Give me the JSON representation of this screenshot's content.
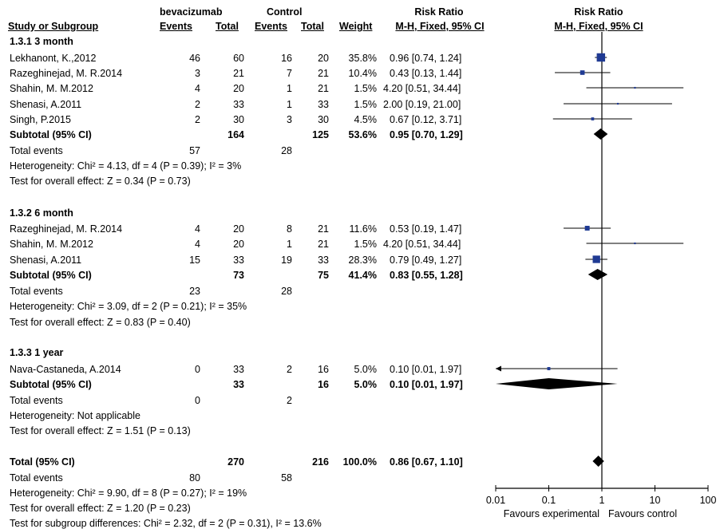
{
  "header": {
    "study_or_subgroup": "Study or Subgroup",
    "group1_name": "bevacizumab",
    "group2_name": "Control",
    "events": "Events",
    "total": "Total",
    "weight": "Weight",
    "rr_title": "Risk Ratio",
    "rr_method": "M-H, Fixed, 95% CI",
    "plot_title": "Risk Ratio",
    "plot_method": "M-H, Fixed, 95% CI"
  },
  "groups": [
    {
      "title": "1.3.1 3 month",
      "studies": [
        {
          "name": "Lekhanont, K.,2012",
          "e1": "46",
          "n1": "60",
          "e2": "16",
          "n2": "20",
          "weight": "35.8%",
          "ci": "0.96 [0.74, 1.24]"
        },
        {
          "name": "Razeghinejad, M. R.2014",
          "e1": "3",
          "n1": "21",
          "e2": "7",
          "n2": "21",
          "weight": "10.4%",
          "ci": "0.43 [0.13, 1.44]"
        },
        {
          "name": "Shahin, M. M.2012",
          "e1": "4",
          "n1": "20",
          "e2": "1",
          "n2": "21",
          "weight": "1.5%",
          "ci": "4.20 [0.51, 34.44]"
        },
        {
          "name": "Shenasi, A.2011",
          "e1": "2",
          "n1": "33",
          "e2": "1",
          "n2": "33",
          "weight": "1.5%",
          "ci": "2.00 [0.19, 21.00]"
        },
        {
          "name": "Singh, P.2015",
          "e1": "2",
          "n1": "30",
          "e2": "3",
          "n2": "30",
          "weight": "4.5%",
          "ci": "0.67 [0.12, 3.71]"
        }
      ],
      "subtotal": {
        "label": "Subtotal (95% CI)",
        "n1": "164",
        "n2": "125",
        "weight": "53.6%",
        "ci": "0.95 [0.70, 1.29]"
      },
      "total_events": {
        "label": "Total events",
        "e1": "57",
        "e2": "28"
      },
      "heterogeneity": "Heterogeneity: Chi² = 4.13, df = 4 (P = 0.39); I² = 3%",
      "overall": "Test for overall effect: Z = 0.34 (P = 0.73)"
    },
    {
      "title": "1.3.2 6 month",
      "studies": [
        {
          "name": "Razeghinejad, M. R.2014",
          "e1": "4",
          "n1": "20",
          "e2": "8",
          "n2": "21",
          "weight": "11.6%",
          "ci": "0.53 [0.19, 1.47]"
        },
        {
          "name": "Shahin, M. M.2012",
          "e1": "4",
          "n1": "20",
          "e2": "1",
          "n2": "21",
          "weight": "1.5%",
          "ci": "4.20 [0.51, 34.44]"
        },
        {
          "name": "Shenasi, A.2011",
          "e1": "15",
          "n1": "33",
          "e2": "19",
          "n2": "33",
          "weight": "28.3%",
          "ci": "0.79 [0.49, 1.27]"
        }
      ],
      "subtotal": {
        "label": "Subtotal (95% CI)",
        "n1": "73",
        "n2": "75",
        "weight": "41.4%",
        "ci": "0.83 [0.55, 1.28]"
      },
      "total_events": {
        "label": "Total events",
        "e1": "23",
        "e2": "28"
      },
      "heterogeneity": "Heterogeneity: Chi² = 3.09, df = 2 (P = 0.21); I² = 35%",
      "overall": "Test for overall effect: Z = 0.83 (P = 0.40)"
    },
    {
      "title": "1.3.3 1 year",
      "studies": [
        {
          "name": "Nava-Castaneda, A.2014",
          "e1": "0",
          "n1": "33",
          "e2": "2",
          "n2": "16",
          "weight": "5.0%",
          "ci": "0.10 [0.01, 1.97]"
        }
      ],
      "subtotal": {
        "label": "Subtotal (95% CI)",
        "n1": "33",
        "n2": "16",
        "weight": "5.0%",
        "ci": "0.10 [0.01, 1.97]"
      },
      "total_events": {
        "label": "Total events",
        "e1": "0",
        "e2": "2"
      },
      "heterogeneity": "Heterogeneity: Not applicable",
      "overall": "Test for overall effect: Z = 1.51 (P = 0.13)"
    }
  ],
  "total": {
    "label": "Total (95% CI)",
    "n1": "270",
    "n2": "216",
    "weight": "100.0%",
    "ci": "0.86 [0.67, 1.10]",
    "events_label": "Total events",
    "e1": "80",
    "e2": "58",
    "heterogeneity": "Heterogeneity: Chi² = 9.90, df = 8 (P = 0.27); I² = 19%",
    "overall": "Test for overall effect: Z = 1.20 (P = 0.23)",
    "subgroup_diff": "Test for subgroup differences: Chi² = 2.32, df = 2 (P = 0.31), I² = 13.6%"
  },
  "axis": {
    "ticks": [
      "0.01",
      "0.1",
      "1",
      "10",
      "100"
    ],
    "favours_left": "Favours experimental",
    "favours_right": "Favours control"
  },
  "colors": {
    "study_marker": "#1f3a93",
    "diamond": "#000000",
    "line": "#000000"
  },
  "chart_data": {
    "type": "forest",
    "scale": "log",
    "xlim": [
      0.01,
      100
    ],
    "reference_line": 1,
    "rows": [
      {
        "label": "Lekhanont, K.,2012",
        "group": "1.3.1 3 month",
        "kind": "study",
        "rr": 0.96,
        "lo": 0.74,
        "hi": 1.24,
        "weight": 35.8
      },
      {
        "label": "Razeghinejad, M. R.2014",
        "group": "1.3.1 3 month",
        "kind": "study",
        "rr": 0.43,
        "lo": 0.13,
        "hi": 1.44,
        "weight": 10.4
      },
      {
        "label": "Shahin, M. M.2012",
        "group": "1.3.1 3 month",
        "kind": "study",
        "rr": 4.2,
        "lo": 0.51,
        "hi": 34.44,
        "weight": 1.5
      },
      {
        "label": "Shenasi, A.2011",
        "group": "1.3.1 3 month",
        "kind": "study",
        "rr": 2.0,
        "lo": 0.19,
        "hi": 21.0,
        "weight": 1.5
      },
      {
        "label": "Singh, P.2015",
        "group": "1.3.1 3 month",
        "kind": "study",
        "rr": 0.67,
        "lo": 0.12,
        "hi": 3.71,
        "weight": 4.5
      },
      {
        "label": "Subtotal (95% CI)",
        "group": "1.3.1 3 month",
        "kind": "subtotal",
        "rr": 0.95,
        "lo": 0.7,
        "hi": 1.29,
        "weight": 53.6
      },
      {
        "label": "Razeghinejad, M. R.2014",
        "group": "1.3.2 6 month",
        "kind": "study",
        "rr": 0.53,
        "lo": 0.19,
        "hi": 1.47,
        "weight": 11.6
      },
      {
        "label": "Shahin, M. M.2012",
        "group": "1.3.2 6 month",
        "kind": "study",
        "rr": 4.2,
        "lo": 0.51,
        "hi": 34.44,
        "weight": 1.5
      },
      {
        "label": "Shenasi, A.2011",
        "group": "1.3.2 6 month",
        "kind": "study",
        "rr": 0.79,
        "lo": 0.49,
        "hi": 1.27,
        "weight": 28.3
      },
      {
        "label": "Subtotal (95% CI)",
        "group": "1.3.2 6 month",
        "kind": "subtotal",
        "rr": 0.83,
        "lo": 0.55,
        "hi": 1.28,
        "weight": 41.4
      },
      {
        "label": "Nava-Castaneda, A.2014",
        "group": "1.3.3 1 year",
        "kind": "study",
        "rr": 0.1,
        "lo": 0.01,
        "hi": 1.97,
        "weight": 5.0
      },
      {
        "label": "Subtotal (95% CI)",
        "group": "1.3.3 1 year",
        "kind": "subtotal",
        "rr": 0.1,
        "lo": 0.01,
        "hi": 1.97,
        "weight": 5.0
      },
      {
        "label": "Total (95% CI)",
        "group": "overall",
        "kind": "total",
        "rr": 0.86,
        "lo": 0.67,
        "hi": 1.1,
        "weight": 100.0
      }
    ]
  }
}
